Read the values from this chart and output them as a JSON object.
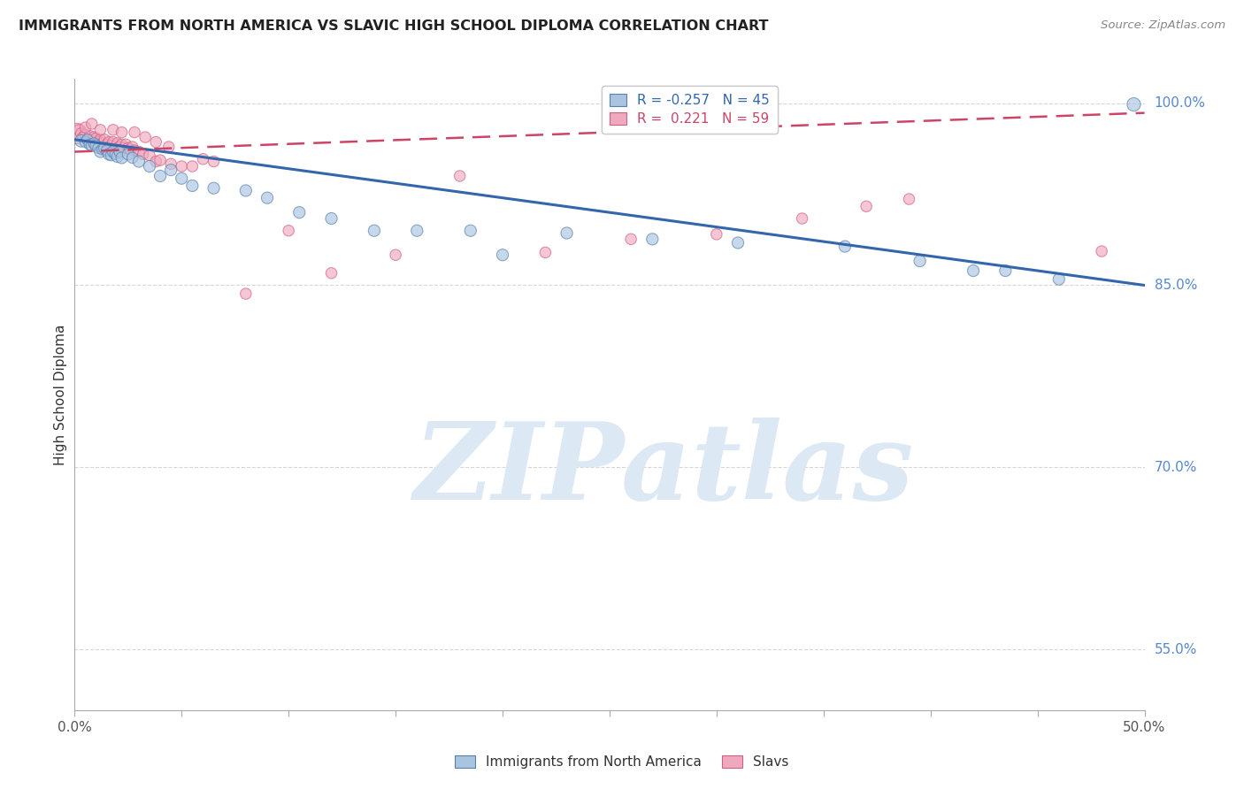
{
  "title": "IMMIGRANTS FROM NORTH AMERICA VS SLAVIC HIGH SCHOOL DIPLOMA CORRELATION CHART",
  "source": "Source: ZipAtlas.com",
  "ylabel": "High School Diploma",
  "xlim": [
    0.0,
    0.5
  ],
  "ylim": [
    0.5,
    1.02
  ],
  "xtick_positions": [
    0.0,
    0.05,
    0.1,
    0.15,
    0.2,
    0.25,
    0.3,
    0.35,
    0.4,
    0.45,
    0.5
  ],
  "xtick_labels_show": {
    "0.0": "0.0%",
    "0.5": "50.0%"
  },
  "ytick_vals_right": [
    1.0,
    0.85,
    0.7,
    0.55
  ],
  "ytick_labels_right": [
    "100.0%",
    "85.0%",
    "70.0%",
    "55.0%"
  ],
  "grid_color": "#cccccc",
  "background_color": "#ffffff",
  "watermark_text": "ZIPatlas",
  "watermark_color": "#dce9f5",
  "legend_R_blue": "-0.257",
  "legend_N_blue": "45",
  "legend_R_pink": "0.221",
  "legend_N_pink": "59",
  "blue_color": "#aac4e0",
  "pink_color": "#f0a8be",
  "blue_edge_color": "#5580b0",
  "pink_edge_color": "#d06080",
  "blue_line_color": "#3366aa",
  "pink_line_color": "#cc4466",
  "blue_line_x": [
    0.0,
    0.5
  ],
  "blue_line_y": [
    0.97,
    0.85
  ],
  "pink_line_x": [
    0.0,
    0.5
  ],
  "pink_line_y": [
    0.96,
    0.992
  ],
  "blue_scatter_x": [
    0.003,
    0.005,
    0.006,
    0.007,
    0.008,
    0.009,
    0.01,
    0.011,
    0.012,
    0.013,
    0.014,
    0.015,
    0.016,
    0.017,
    0.018,
    0.019,
    0.02,
    0.021,
    0.022,
    0.025,
    0.027,
    0.03,
    0.035,
    0.04,
    0.045,
    0.05,
    0.055,
    0.065,
    0.08,
    0.09,
    0.105,
    0.12,
    0.14,
    0.16,
    0.185,
    0.2,
    0.23,
    0.27,
    0.31,
    0.36,
    0.395,
    0.42,
    0.435,
    0.46,
    0.495
  ],
  "blue_scatter_y": [
    0.969,
    0.968,
    0.97,
    0.966,
    0.965,
    0.967,
    0.965,
    0.963,
    0.96,
    0.962,
    0.963,
    0.961,
    0.958,
    0.957,
    0.96,
    0.958,
    0.956,
    0.96,
    0.955,
    0.958,
    0.955,
    0.952,
    0.948,
    0.94,
    0.945,
    0.938,
    0.932,
    0.93,
    0.928,
    0.922,
    0.91,
    0.905,
    0.895,
    0.895,
    0.895,
    0.875,
    0.893,
    0.888,
    0.885,
    0.882,
    0.87,
    0.862,
    0.862,
    0.855,
    0.999
  ],
  "blue_scatter_size": [
    100,
    80,
    80,
    80,
    90,
    80,
    90,
    80,
    90,
    80,
    90,
    80,
    90,
    80,
    90,
    80,
    90,
    80,
    90,
    90,
    80,
    90,
    90,
    90,
    90,
    90,
    90,
    90,
    90,
    90,
    90,
    90,
    90,
    90,
    90,
    90,
    90,
    90,
    90,
    90,
    90,
    90,
    90,
    90,
    120
  ],
  "pink_scatter_x": [
    0.001,
    0.002,
    0.003,
    0.004,
    0.005,
    0.006,
    0.007,
    0.008,
    0.009,
    0.01,
    0.011,
    0.012,
    0.013,
    0.014,
    0.015,
    0.016,
    0.017,
    0.018,
    0.019,
    0.02,
    0.021,
    0.022,
    0.023,
    0.024,
    0.025,
    0.026,
    0.027,
    0.028,
    0.03,
    0.032,
    0.035,
    0.038,
    0.04,
    0.045,
    0.05,
    0.055,
    0.065,
    0.08,
    0.1,
    0.12,
    0.15,
    0.18,
    0.22,
    0.26,
    0.3,
    0.34,
    0.37,
    0.39,
    0.48,
    0.005,
    0.008,
    0.012,
    0.018,
    0.022,
    0.028,
    0.033,
    0.038,
    0.044,
    0.06
  ],
  "pink_scatter_y": [
    0.975,
    0.978,
    0.975,
    0.972,
    0.974,
    0.97,
    0.973,
    0.969,
    0.972,
    0.971,
    0.968,
    0.97,
    0.967,
    0.97,
    0.966,
    0.968,
    0.965,
    0.968,
    0.963,
    0.967,
    0.964,
    0.966,
    0.963,
    0.966,
    0.963,
    0.962,
    0.964,
    0.961,
    0.96,
    0.958,
    0.957,
    0.952,
    0.953,
    0.95,
    0.948,
    0.948,
    0.952,
    0.843,
    0.895,
    0.86,
    0.875,
    0.94,
    0.877,
    0.888,
    0.892,
    0.905,
    0.915,
    0.921,
    0.878,
    0.98,
    0.983,
    0.978,
    0.978,
    0.976,
    0.976,
    0.972,
    0.968,
    0.964,
    0.954
  ],
  "pink_scatter_size": [
    280,
    80,
    80,
    80,
    80,
    80,
    80,
    80,
    80,
    80,
    80,
    80,
    80,
    80,
    80,
    80,
    80,
    80,
    80,
    80,
    80,
    80,
    80,
    80,
    80,
    80,
    80,
    80,
    80,
    80,
    80,
    80,
    80,
    80,
    80,
    80,
    80,
    80,
    80,
    80,
    80,
    80,
    80,
    80,
    80,
    80,
    80,
    80,
    80,
    80,
    80,
    80,
    80,
    80,
    80,
    80,
    80,
    80,
    80
  ]
}
